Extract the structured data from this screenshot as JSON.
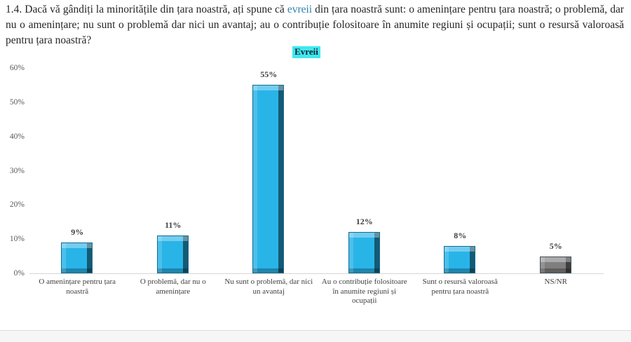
{
  "question": {
    "before": "1.4. Dacă vă gândiți la minoritățile din țara noastră, ați spune că ",
    "keyword": "evreii",
    "after": " din țara noastră sunt: o amenințare pentru țara noastră; o problemă, dar nu o amenințare; nu sunt o problemă dar nici un avantaj; au o contribuție folositoare în anumite regiuni și ocupații; sunt o resursă valoroasă pentru țara noastră?",
    "keyword_color": "#2e81ae"
  },
  "chart_data": {
    "type": "bar",
    "title": "Evreii",
    "title_highlight_color": "#3fe8ef",
    "categories": [
      "O amenințare pentru țara noastră",
      "O problemă, dar nu o amenințare",
      "Nu sunt o problemă, dar nici un avantaj",
      "Au o contribuție folositoare în anumite regiuni și ocupații",
      "Sunt o resursă valoroasă pentru țara noastră",
      "NS/NR"
    ],
    "values": [
      9,
      11,
      55,
      12,
      8,
      5
    ],
    "value_labels": [
      "9%",
      "11%",
      "55%",
      "12%",
      "8%",
      "5%"
    ],
    "bar_colors": [
      "#29b4e8",
      "#29b4e8",
      "#29b4e8",
      "#29b4e8",
      "#29b4e8",
      "#7f7f7f"
    ],
    "accent_color": "#29b4e8",
    "nsnr_color": "#7f7f7f",
    "ylim": [
      0,
      60
    ],
    "yticks": [
      "0%",
      "10%",
      "20%",
      "30%",
      "40%",
      "50%",
      "60%"
    ],
    "xlabel": "",
    "ylabel": "",
    "grid": false,
    "legend": "none"
  }
}
